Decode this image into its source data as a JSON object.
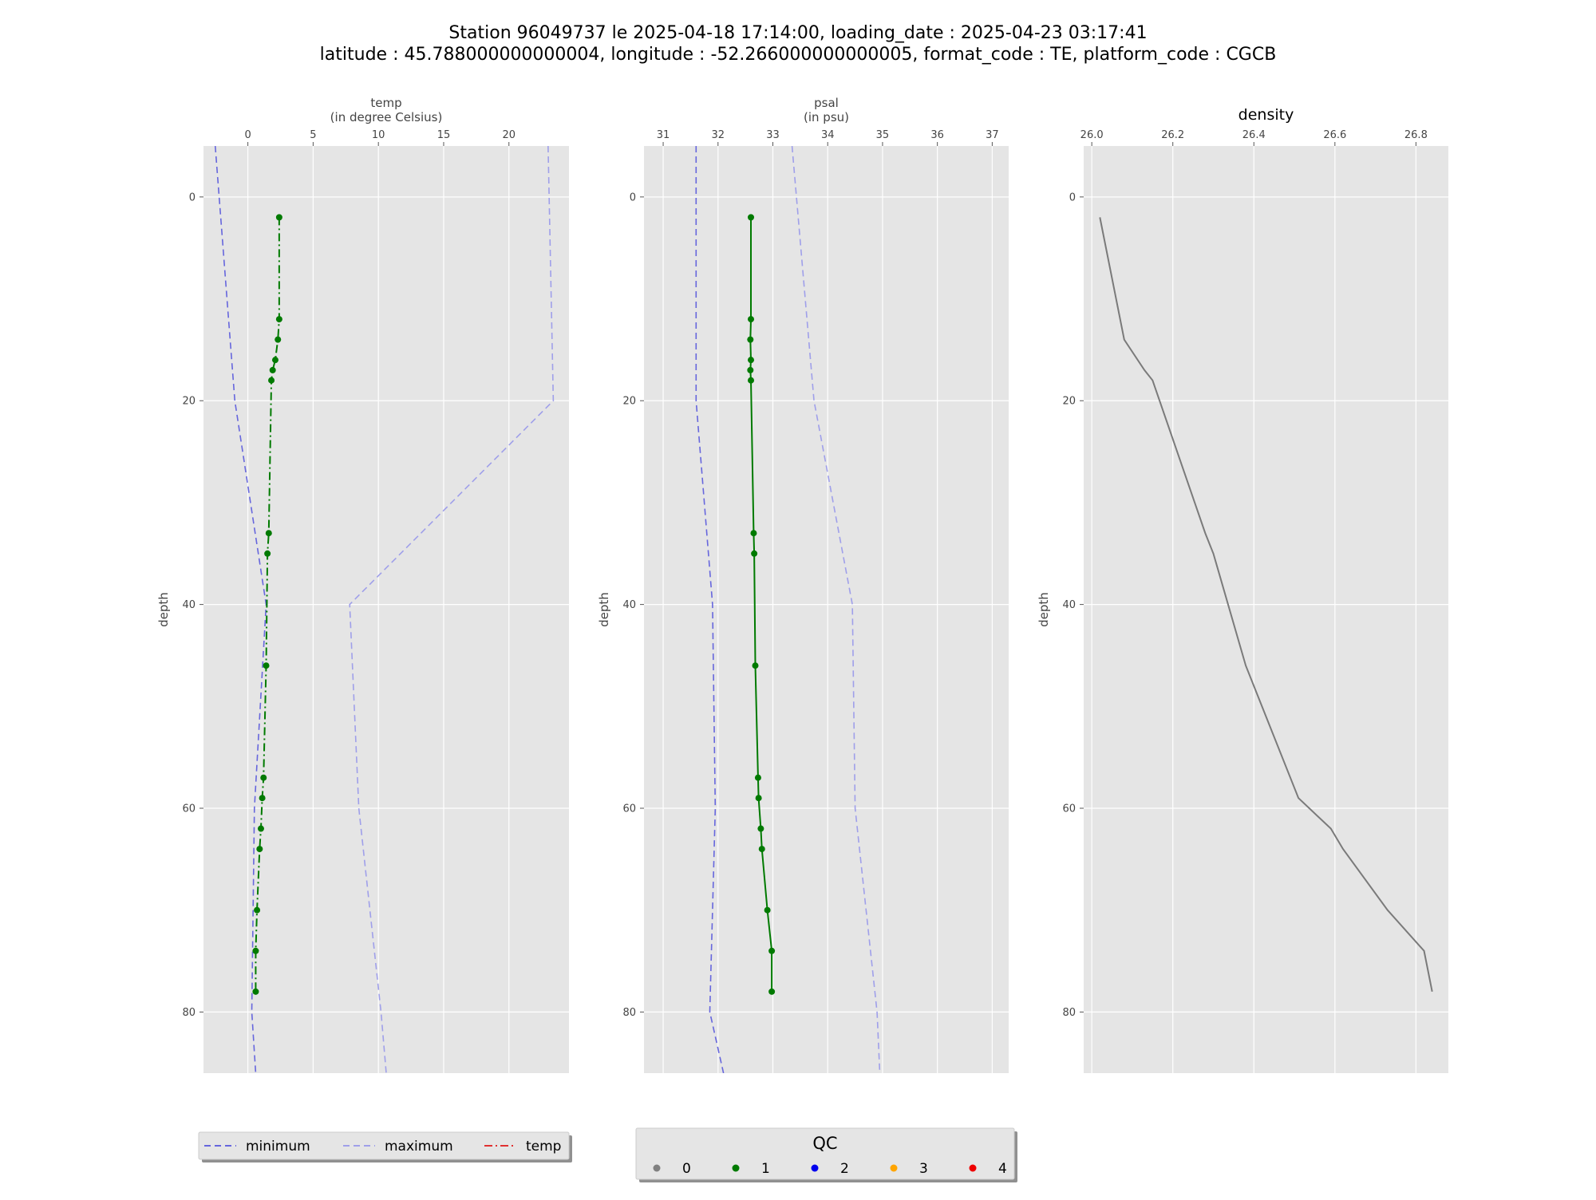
{
  "figure": {
    "title_line1": "Station 96049737 le 2025-04-18 17:14:00, loading_date : 2025-04-23 03:17:41",
    "title_line2": "latitude : 45.788000000000004, longitude : -52.266000000000005, format_code : TE, platform_code : CGCB"
  },
  "colors": {
    "minimum": "#6666dd",
    "maximum": "#9f9fea",
    "profile": "#007a00",
    "density": "#7a7a7a",
    "panel_bg": "#e5e5e5",
    "grid": "#ffffff"
  },
  "chart_data": [
    {
      "type": "line",
      "xlabel_line1": "temp",
      "xlabel_line2": "(in degree Celsius)",
      "ylabel": "depth",
      "xlim": [
        -3.4,
        24.6
      ],
      "ylim": [
        86,
        -5
      ],
      "y_inverted": true,
      "x_axis_position": "top",
      "xticks": [
        0,
        5,
        10,
        15,
        20
      ],
      "yticks": [
        0,
        20,
        40,
        60,
        80
      ],
      "grid": true,
      "series": [
        {
          "name": "minimum",
          "style": "dashed",
          "x": [
            -2.5,
            -1.0,
            1.4,
            0.5,
            0.3,
            0.6
          ],
          "y": [
            -5,
            20,
            40,
            60,
            80,
            86
          ]
        },
        {
          "name": "maximum",
          "style": "dashed",
          "x": [
            23.0,
            23.4,
            7.8,
            8.5,
            10.2,
            10.6
          ],
          "y": [
            -5,
            20,
            40,
            60,
            80,
            86
          ]
        },
        {
          "name": "temp",
          "style": "dashdot",
          "qc": 1,
          "markers": true,
          "x": [
            2.4,
            2.4,
            2.3,
            2.1,
            1.9,
            1.8,
            1.6,
            1.5,
            1.4,
            1.2,
            1.1,
            1.0,
            0.9,
            0.7,
            0.6,
            0.6
          ],
          "y": [
            2,
            12,
            14,
            16,
            17,
            18,
            33,
            35,
            46,
            57,
            59,
            62,
            64,
            70,
            74,
            78
          ]
        }
      ]
    },
    {
      "type": "line",
      "xlabel_line1": "psal",
      "xlabel_line2": "(in psu)",
      "ylabel": "depth",
      "xlim": [
        30.65,
        37.3
      ],
      "ylim": [
        86,
        -5
      ],
      "y_inverted": true,
      "x_axis_position": "top",
      "xticks": [
        31,
        32,
        33,
        34,
        35,
        36,
        37
      ],
      "yticks": [
        0,
        20,
        40,
        60,
        80
      ],
      "grid": true,
      "series": [
        {
          "name": "minimum",
          "style": "dashed",
          "x": [
            31.6,
            31.6,
            31.9,
            31.95,
            31.85,
            32.1
          ],
          "y": [
            -5,
            20,
            40,
            60,
            80,
            86
          ]
        },
        {
          "name": "maximum",
          "style": "dashed",
          "x": [
            33.35,
            33.75,
            34.45,
            34.5,
            34.9,
            34.95
          ],
          "y": [
            -5,
            20,
            40,
            60,
            80,
            86
          ]
        },
        {
          "name": "psal",
          "style": "solid",
          "qc": 1,
          "markers": true,
          "x": [
            32.6,
            32.6,
            32.59,
            32.6,
            32.59,
            32.6,
            32.65,
            32.66,
            32.68,
            32.73,
            32.74,
            32.78,
            32.8,
            32.9,
            32.98,
            32.98
          ],
          "y": [
            2,
            12,
            14,
            16,
            17,
            18,
            33,
            35,
            46,
            57,
            59,
            62,
            64,
            70,
            74,
            78
          ]
        }
      ]
    },
    {
      "type": "line",
      "title": "density",
      "ylabel": "depth",
      "xlim": [
        25.98,
        26.88
      ],
      "ylim": [
        86,
        -5
      ],
      "y_inverted": true,
      "x_axis_position": "top",
      "xticks": [
        26.0,
        26.2,
        26.4,
        26.6,
        26.8
      ],
      "xtick_labels": [
        "26.0",
        "26.2",
        "26.4",
        "26.6",
        "26.8"
      ],
      "yticks": [
        0,
        20,
        40,
        60,
        80
      ],
      "grid": true,
      "series": [
        {
          "style": "solid",
          "x": [
            26.02,
            26.08,
            26.13,
            26.15,
            26.28,
            26.3,
            26.38,
            26.49,
            26.51,
            26.59,
            26.62,
            26.73,
            26.82,
            26.84
          ],
          "y": [
            2,
            14,
            17,
            18,
            33,
            35,
            46,
            57,
            59,
            62,
            64,
            70,
            74,
            78
          ]
        }
      ]
    }
  ],
  "legend_lines": {
    "placement": "bottom-left",
    "items": [
      {
        "label": "minimum",
        "style": "dashed",
        "color_key": "minimum"
      },
      {
        "label": "maximum",
        "style": "dashed",
        "color_key": "maximum"
      },
      {
        "label": "temp",
        "style": "dashdot",
        "color": "#e03030"
      }
    ]
  },
  "legend_qc": {
    "title": "QC",
    "placement": "bottom-center",
    "items": [
      {
        "label": "0",
        "color": "#808080"
      },
      {
        "label": "1",
        "color": "#007a00"
      },
      {
        "label": "2",
        "color": "#0000ee"
      },
      {
        "label": "3",
        "color": "#ffa500"
      },
      {
        "label": "4",
        "color": "#ee0000"
      }
    ]
  }
}
